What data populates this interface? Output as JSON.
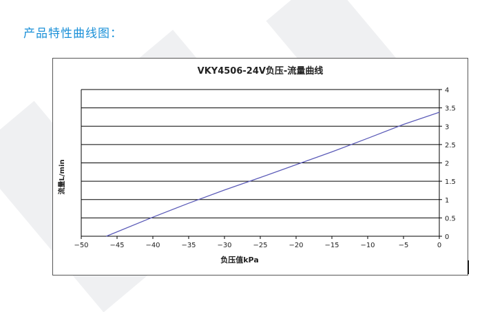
{
  "page": {
    "heading": "产品特性曲线图："
  },
  "colors": {
    "heading": "#1a90d8",
    "curve": "#5b5bb8",
    "grid": "#000000"
  },
  "chart_data": {
    "type": "line",
    "title": "VKY4506-24V负压-流量曲线",
    "xlabel": "负压值kPa",
    "ylabel": "流量L/min",
    "xlim": [
      -50,
      0
    ],
    "ylim": [
      0,
      4
    ],
    "x_ticks": [
      -50,
      -45,
      -40,
      -35,
      -30,
      -25,
      -20,
      -15,
      -10,
      -5,
      0
    ],
    "y_ticks": [
      0,
      0.5,
      1,
      1.5,
      2,
      2.5,
      3,
      3.5,
      4
    ],
    "y_tick_labels": [
      "0",
      "0.5",
      "1",
      "1.5",
      "2",
      "2.5",
      "3",
      "3.5",
      "4"
    ],
    "y_axis_side": "right",
    "grid": "horizontal",
    "series": [
      {
        "x": [
          -46.5,
          -45,
          -40,
          -35,
          -30,
          -25,
          -20,
          -15,
          -10,
          -5,
          0
        ],
        "y": [
          0,
          0.12,
          0.52,
          0.9,
          1.26,
          1.6,
          1.95,
          2.3,
          2.67,
          3.05,
          3.38
        ]
      }
    ]
  }
}
